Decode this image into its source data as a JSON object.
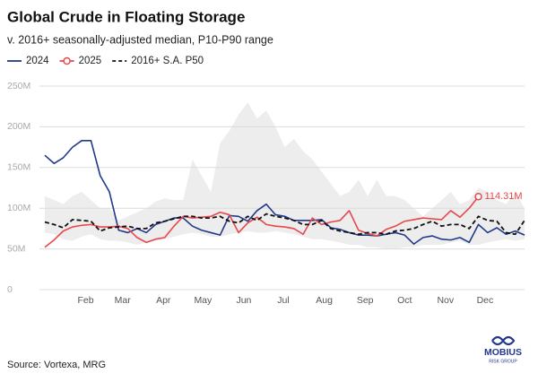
{
  "chart_data": {
    "type": "line",
    "title": "Global Crude in Floating Storage",
    "subtitle": "v. 2016+ seasonally-adjusted median, P10-P90 range",
    "source": "Source: Vortexa, MRG",
    "logo": {
      "name": "MOBIUS",
      "tagline": "RISK GROUP"
    },
    "x": [
      1,
      8,
      15,
      22,
      29,
      36,
      43,
      50,
      57,
      64,
      71,
      78,
      85,
      92,
      99,
      106,
      113,
      120,
      127,
      134,
      141,
      148,
      155,
      162,
      169,
      176,
      183,
      190,
      197,
      204,
      211,
      218,
      225,
      232,
      239,
      246,
      253,
      260,
      267,
      274,
      281,
      288,
      295,
      302,
      309,
      316,
      323,
      330,
      337,
      344,
      351,
      358,
      365
    ],
    "xlim": [
      1,
      365
    ],
    "xticks": [
      {
        "value": 32,
        "label": "Feb"
      },
      {
        "value": 60,
        "label": "Mar"
      },
      {
        "value": 91,
        "label": "Apr"
      },
      {
        "value": 121,
        "label": "May"
      },
      {
        "value": 152,
        "label": "Jun"
      },
      {
        "value": 182,
        "label": "Jul"
      },
      {
        "value": 213,
        "label": "Aug"
      },
      {
        "value": 244,
        "label": "Sep"
      },
      {
        "value": 274,
        "label": "Oct"
      },
      {
        "value": 305,
        "label": "Nov"
      },
      {
        "value": 335,
        "label": "Dec"
      }
    ],
    "ylim": [
      0,
      250
    ],
    "yticks": [
      0,
      {
        "value": 50,
        "label": "50M"
      },
      {
        "value": 100,
        "label": "100M"
      },
      {
        "value": 150,
        "label": "150M"
      },
      {
        "value": 200,
        "label": "200M"
      },
      {
        "value": 250,
        "label": "250M"
      }
    ],
    "grid": true,
    "band": {
      "color": "#ededed",
      "low": [
        70,
        68,
        62,
        60,
        65,
        68,
        62,
        60,
        60,
        58,
        55,
        58,
        60,
        62,
        65,
        68,
        70,
        68,
        65,
        65,
        68,
        70,
        72,
        70,
        70,
        72,
        70,
        68,
        65,
        62,
        62,
        60,
        58,
        55,
        55,
        52,
        52,
        50,
        50,
        52,
        52,
        55,
        55,
        55,
        58,
        60,
        55,
        55,
        58,
        60,
        62,
        60,
        62
      ],
      "high": [
        115,
        110,
        105,
        115,
        120,
        110,
        100,
        100,
        85,
        90,
        95,
        100,
        108,
        112,
        110,
        110,
        160,
        140,
        120,
        180,
        195,
        215,
        230,
        210,
        220,
        200,
        175,
        185,
        170,
        160,
        145,
        130,
        115,
        120,
        135,
        115,
        135,
        115,
        115,
        110,
        100,
        90,
        100,
        110,
        120,
        105,
        110,
        125,
        120,
        110,
        105,
        120,
        100
      ]
    },
    "series": [
      {
        "name": "2024",
        "color": "#22398a",
        "line_style": "solid",
        "values": [
          165,
          155,
          162,
          175,
          183,
          183,
          140,
          120,
          73,
          70,
          75,
          70,
          80,
          84,
          88,
          88,
          78,
          73,
          70,
          67,
          91,
          90,
          84,
          97,
          105,
          92,
          90,
          85,
          85,
          85,
          86,
          76,
          74,
          70,
          67,
          67,
          66,
          68,
          70,
          67,
          56,
          64,
          66,
          62,
          61,
          64,
          58,
          80,
          70,
          76,
          68,
          72,
          67
        ]
      },
      {
        "name": "2025",
        "color": "#e8474c",
        "line_style": "solid",
        "end_marker": true,
        "values": [
          52,
          61,
          72,
          77,
          79,
          80,
          77,
          77,
          78,
          75,
          64,
          58,
          62,
          64,
          78,
          90,
          88,
          89,
          90,
          95,
          92,
          70,
          82,
          89,
          80,
          78,
          77,
          75,
          68,
          88,
          80,
          83,
          85,
          97,
          73,
          69,
          66,
          74,
          78,
          84,
          86,
          88,
          87,
          86,
          97,
          89,
          100,
          114.31,
          null,
          null,
          null,
          null,
          null
        ],
        "value_labels": [
          null,
          null,
          null,
          null,
          null,
          null,
          null,
          null,
          null,
          null,
          null,
          null,
          null,
          null,
          null,
          null,
          null,
          null,
          null,
          null,
          null,
          null,
          null,
          null,
          null,
          null,
          null,
          null,
          null,
          null,
          null,
          null,
          null,
          null,
          null,
          null,
          null,
          null,
          null,
          null,
          null,
          null,
          null,
          null,
          null,
          null,
          null,
          "114.31M",
          null,
          null,
          null,
          null,
          null
        ]
      },
      {
        "name": "2016+ S.A. P50",
        "color": "#111111",
        "line_style": "dashed",
        "values": [
          83,
          80,
          76,
          86,
          85,
          84,
          72,
          76,
          77,
          78,
          75,
          75,
          82,
          84,
          87,
          90,
          90,
          88,
          88,
          90,
          84,
          82,
          90,
          85,
          93,
          90,
          88,
          85,
          80,
          80,
          85,
          75,
          72,
          70,
          68,
          70,
          70,
          68,
          72,
          73,
          75,
          80,
          84,
          78,
          80,
          80,
          75,
          90,
          85,
          84,
          70,
          68,
          85
        ]
      }
    ]
  }
}
